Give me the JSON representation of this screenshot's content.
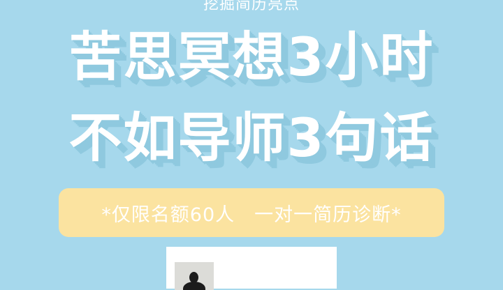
{
  "poster": {
    "subtitle": "挖掘简历亮点",
    "headline_line1": "苦思冥想3小时",
    "headline_line2": "不如导师3句话",
    "banner_text": "*仅限名额60人　一对一简历诊断*",
    "colors": {
      "background": "#a6d8ec",
      "headline_text": "#ffffff",
      "headline_shadow": "#8fc9df",
      "banner_background": "#fbe3a0",
      "banner_text": "#ffffff",
      "card_background": "#ffffff"
    }
  }
}
